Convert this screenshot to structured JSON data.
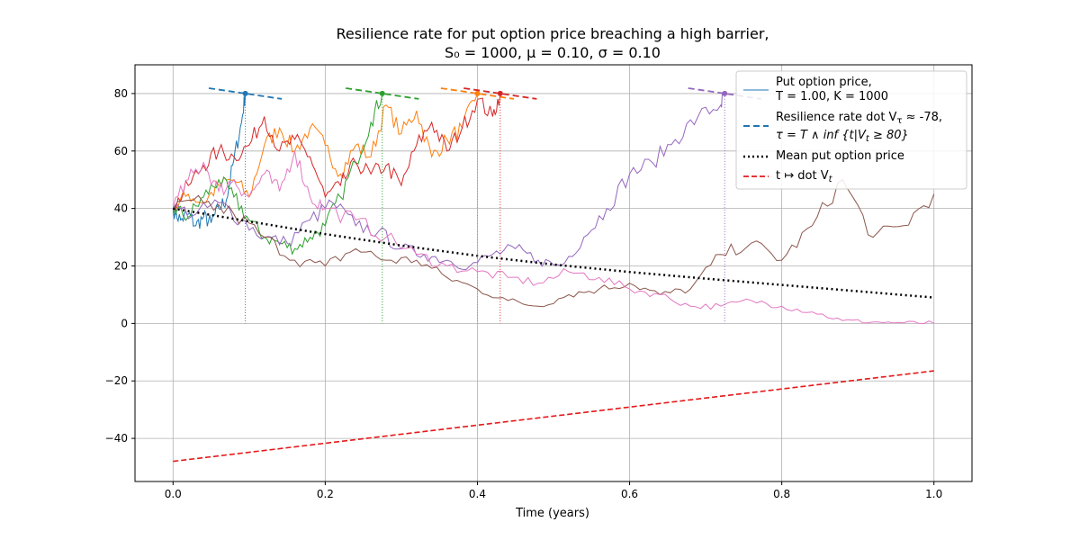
{
  "chart_data": {
    "type": "line",
    "title_line1": "Resilience rate for put option price breaching a high barrier,",
    "title_line2": "S₀ = 1000, μ = 0.10, σ = 0.10",
    "xlabel": "Time (years)",
    "ylabel": "",
    "xlim": [
      -0.05,
      1.05
    ],
    "ylim": [
      -55,
      90
    ],
    "x_ticks": [
      0.0,
      0.2,
      0.4,
      0.6,
      0.8,
      1.0
    ],
    "x_tick_labels": [
      "0.0",
      "0.2",
      "0.4",
      "0.6",
      "0.8",
      "1.0"
    ],
    "y_ticks": [
      -40,
      -20,
      0,
      20,
      40,
      60,
      80
    ],
    "y_tick_labels": [
      "−40",
      "−20",
      "0",
      "20",
      "40",
      "60",
      "80"
    ],
    "grid": true,
    "legend_position": "top-right",
    "legend": {
      "put_line1": "Put option price,",
      "put_line2": "T = 1.00, K = 1000",
      "res_line1": "Resilience rate dot V",
      "res_line1_sub": "τ",
      "res_line1_tail": " ≈ -78,",
      "res_line2": "τ = T ∧ inf {t|V",
      "res_line2_sub": "t",
      "res_line2_tail": " ≥ 80}",
      "mean": "Mean put option price",
      "rate": "t ↦ dot V",
      "rate_sub": "t"
    },
    "barrier": 80,
    "series": [
      {
        "name": "path-1",
        "color": "#1f77b4",
        "x": [
          0.0,
          0.01,
          0.02,
          0.03,
          0.04,
          0.05,
          0.06,
          0.07,
          0.08,
          0.09,
          0.095
        ],
        "y": [
          40,
          36,
          38,
          34,
          37,
          35,
          40,
          43,
          57,
          70,
          80
        ]
      },
      {
        "name": "path-2",
        "color": "#ff7f0e",
        "x": [
          0.0,
          0.02,
          0.04,
          0.06,
          0.08,
          0.1,
          0.12,
          0.14,
          0.16,
          0.18,
          0.2,
          0.22,
          0.24,
          0.26,
          0.28,
          0.3,
          0.32,
          0.34,
          0.36,
          0.38,
          0.4
        ],
        "y": [
          40,
          45,
          42,
          48,
          50,
          44,
          62,
          68,
          60,
          68,
          62,
          52,
          62,
          58,
          76,
          66,
          74,
          58,
          64,
          68,
          80
        ]
      },
      {
        "name": "path-3",
        "color": "#2ca02c",
        "x": [
          0.0,
          0.02,
          0.04,
          0.06,
          0.08,
          0.1,
          0.12,
          0.14,
          0.16,
          0.18,
          0.2,
          0.22,
          0.24,
          0.26,
          0.275
        ],
        "y": [
          40,
          37,
          44,
          50,
          44,
          36,
          30,
          28,
          26,
          30,
          34,
          44,
          56,
          70,
          80
        ]
      },
      {
        "name": "path-4",
        "color": "#d62728",
        "x": [
          0.0,
          0.02,
          0.04,
          0.06,
          0.08,
          0.1,
          0.12,
          0.14,
          0.16,
          0.18,
          0.2,
          0.22,
          0.24,
          0.26,
          0.28,
          0.3,
          0.32,
          0.34,
          0.36,
          0.38,
          0.4,
          0.42,
          0.43
        ],
        "y": [
          40,
          48,
          55,
          60,
          58,
          62,
          72,
          60,
          64,
          58,
          44,
          48,
          56,
          52,
          55,
          48,
          62,
          70,
          60,
          68,
          78,
          72,
          80
        ]
      },
      {
        "name": "path-5",
        "color": "#9467bd",
        "x": [
          0.0,
          0.03,
          0.06,
          0.09,
          0.12,
          0.15,
          0.18,
          0.21,
          0.24,
          0.27,
          0.3,
          0.33,
          0.36,
          0.39,
          0.42,
          0.45,
          0.48,
          0.51,
          0.54,
          0.57,
          0.6,
          0.63,
          0.66,
          0.69,
          0.72,
          0.725
        ],
        "y": [
          40,
          38,
          42,
          36,
          30,
          28,
          36,
          42,
          34,
          32,
          26,
          24,
          22,
          20,
          24,
          26,
          22,
          20,
          30,
          40,
          52,
          56,
          64,
          72,
          76,
          80
        ]
      },
      {
        "name": "path-6",
        "color": "#8c564b",
        "x": [
          0.0,
          0.04,
          0.08,
          0.12,
          0.16,
          0.2,
          0.24,
          0.28,
          0.32,
          0.36,
          0.4,
          0.44,
          0.48,
          0.52,
          0.56,
          0.6,
          0.64,
          0.68,
          0.72,
          0.76,
          0.8,
          0.84,
          0.88,
          0.92,
          0.96,
          1.0
        ],
        "y": [
          40,
          42,
          38,
          30,
          22,
          20,
          26,
          22,
          22,
          16,
          12,
          8,
          6,
          10,
          12,
          14,
          10,
          12,
          24,
          28,
          22,
          34,
          50,
          30,
          34,
          45
        ]
      },
      {
        "name": "path-7",
        "color": "#e377c2",
        "x": [
          0.0,
          0.02,
          0.04,
          0.06,
          0.08,
          0.1,
          0.12,
          0.14,
          0.16,
          0.18,
          0.2,
          0.24,
          0.28,
          0.32,
          0.36,
          0.4,
          0.44,
          0.48,
          0.52,
          0.56,
          0.6,
          0.64,
          0.68,
          0.72,
          0.76,
          0.8,
          0.84,
          0.88,
          0.92,
          0.96,
          1.0
        ],
        "y": [
          40,
          50,
          56,
          46,
          50,
          44,
          52,
          46,
          60,
          44,
          40,
          36,
          30,
          24,
          20,
          18,
          16,
          14,
          18,
          16,
          12,
          10,
          6,
          6,
          8,
          6,
          4,
          1,
          0.5,
          0.2,
          0.1
        ]
      }
    ],
    "mean_series": {
      "x": [
        0.0,
        0.1,
        0.2,
        0.3,
        0.4,
        0.5,
        0.6,
        0.7,
        0.8,
        0.9,
        1.0
      ],
      "y": [
        40,
        35.5,
        31.1,
        27.1,
        23.5,
        20.5,
        17.9,
        15.6,
        13.4,
        11.2,
        9
      ]
    },
    "rate_series": {
      "x": [
        0.0,
        1.0
      ],
      "y": [
        -48,
        -16.5
      ]
    },
    "hit_markers": [
      {
        "t": 0.095,
        "color": "#1f77b4"
      },
      {
        "t": 0.275,
        "color": "#2ca02c"
      },
      {
        "t": 0.4,
        "color": "#ff7f0e"
      },
      {
        "t": 0.43,
        "color": "#d62728"
      },
      {
        "t": 0.725,
        "color": "#9467bd"
      }
    ],
    "tangent_half_width": 0.048,
    "tangent_slope": -78
  }
}
